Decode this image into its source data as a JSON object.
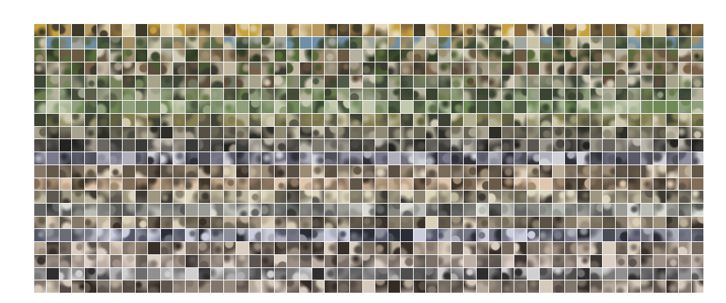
{
  "mosaic": {
    "description_visible_text": "",
    "rows": 21,
    "columns": 53,
    "row_palettes": [
      [
        "#6b5a3a",
        "#b89a5e",
        "#3e3a2a",
        "#d8c9a0",
        "#8a6d3b",
        "#c7a23a",
        "#4a4030",
        "#e3d8b8"
      ],
      [
        "#7d7f6a",
        "#5f6b4a",
        "#9fa6a0",
        "#4b5a3c",
        "#c9c3a8",
        "#3c4a3a",
        "#a39066",
        "#6e8fa8"
      ],
      [
        "#6a5a44",
        "#8b7d5c",
        "#3f4a2e",
        "#b6b1a0",
        "#2e3a22",
        "#9c8c70",
        "#5a6b3a",
        "#d0cbb8"
      ],
      [
        "#5e4e3c",
        "#6d6a58",
        "#a59a86",
        "#3a3a30",
        "#8c8a70",
        "#c2b8a2",
        "#4a5a30",
        "#7a6248"
      ],
      [
        "#505a48",
        "#6e7660",
        "#8a8a74",
        "#3e4636",
        "#a8a48c",
        "#5c4c3a",
        "#cfc8b4",
        "#76845a"
      ],
      [
        "#5a5e4a",
        "#7d8466",
        "#9aa08a",
        "#444c38",
        "#b6b49c",
        "#6a7a4a",
        "#3a4430",
        "#8c9c78"
      ],
      [
        "#4c5a42",
        "#708a56",
        "#8fa07a",
        "#3a4a30",
        "#a9b896",
        "#5e6e4a",
        "#c4cab0",
        "#7a8c66"
      ],
      [
        "#5a5a46",
        "#7a7450",
        "#9a9670",
        "#3e4234",
        "#b4b092",
        "#62643e",
        "#d0cab0",
        "#868050"
      ],
      [
        "#4a4a40",
        "#6a6656",
        "#8e8a74",
        "#2e2e28",
        "#a8a290",
        "#555044",
        "#c6c0ac",
        "#767060"
      ],
      [
        "#3a3a36",
        "#5a5650",
        "#7e7a70",
        "#22221e",
        "#9c968a",
        "#4a4640",
        "#bcb6aa",
        "#6a6660"
      ],
      [
        "#50505a",
        "#707080",
        "#9090a0",
        "#30303a",
        "#b0b0bc",
        "#5a5a6a",
        "#d0d0d8",
        "#7a7a8c"
      ],
      [
        "#5a5044",
        "#7a6c5a",
        "#9c8c76",
        "#3a3028",
        "#bcae98",
        "#645848",
        "#dcd0bc",
        "#86786a"
      ],
      [
        "#605648",
        "#806e5a",
        "#a08a70",
        "#40362a",
        "#c0a88e",
        "#6a5a48",
        "#e0c8ae",
        "#8c7662"
      ],
      [
        "#5c5a50",
        "#7c7866",
        "#9e9880",
        "#3c3a32",
        "#beb89e",
        "#686452",
        "#dcd6bc",
        "#8a8470"
      ],
      [
        "#585a58",
        "#787a76",
        "#9a9c96",
        "#383a38",
        "#babcb6",
        "#626462",
        "#dadcd6",
        "#868882"
      ],
      [
        "#5a5246",
        "#7a7060",
        "#9c907c",
        "#3a3228",
        "#bcb09a",
        "#645a4a",
        "#dcd0ba",
        "#867a68"
      ],
      [
        "#4a4c56",
        "#6a6c78",
        "#8c8e9a",
        "#2a2c36",
        "#acaeba",
        "#54566a",
        "#cccede",
        "#767888"
      ],
      [
        "#585048",
        "#786c60",
        "#9a8c7e",
        "#383028",
        "#baac9c",
        "#625850",
        "#dacec0",
        "#84786c"
      ],
      [
        "#5c5450",
        "#7c7068",
        "#9e9086",
        "#3c3430",
        "#beb0a6",
        "#665c56",
        "#ded0c6",
        "#887c74"
      ],
      [
        "#4e4e4e",
        "#6e6e6e",
        "#909090",
        "#2e2e2e",
        "#b0b0b0",
        "#5a5a5a",
        "#d0d0d0",
        "#7a7a7a"
      ],
      [
        "#544c44",
        "#746a5e",
        "#968a7c",
        "#342c24",
        "#b6aa9a",
        "#5e564c",
        "#d6cabb",
        "#80766a"
      ]
    ]
  }
}
